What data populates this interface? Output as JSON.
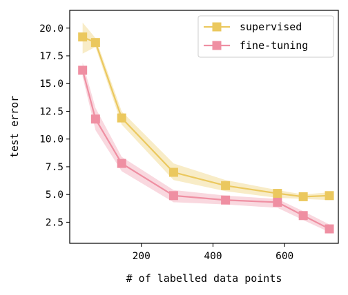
{
  "chart_data": {
    "type": "line",
    "title": "",
    "xlabel": "# of labelled data points",
    "ylabel": "test error",
    "xlim": [
      0,
      750
    ],
    "ylim": [
      0.6,
      21.6
    ],
    "xticks": [
      200,
      400,
      600
    ],
    "yticks": [
      2.5,
      5.0,
      7.5,
      10.0,
      12.5,
      15.0,
      17.5,
      20.0
    ],
    "grid": false,
    "legend_position": "top-right",
    "series": [
      {
        "name": "supervised",
        "color": "#EBC85E",
        "marker": "square",
        "x": [
          36,
          72,
          145,
          290,
          435,
          580,
          652,
          725
        ],
        "y": [
          19.2,
          18.7,
          11.9,
          7.0,
          5.8,
          5.1,
          4.8,
          4.9
        ],
        "lower": [
          17.7,
          18.3,
          11.3,
          6.3,
          5.3,
          4.7,
          4.6,
          4.5
        ],
        "upper": [
          20.5,
          19.1,
          12.5,
          7.8,
          6.3,
          5.4,
          5.0,
          5.2
        ]
      },
      {
        "name": "fine-tuning",
        "color": "#EF8FA2",
        "marker": "square",
        "x": [
          36,
          72,
          145,
          290,
          435,
          580,
          652,
          725
        ],
        "y": [
          16.2,
          11.8,
          7.8,
          4.9,
          4.5,
          4.3,
          3.1,
          1.9
        ],
        "lower": [
          15.6,
          10.8,
          7.1,
          4.3,
          4.1,
          3.8,
          2.7,
          1.6
        ],
        "upper": [
          16.9,
          12.8,
          8.4,
          5.4,
          4.9,
          4.6,
          3.5,
          2.3
        ]
      }
    ]
  }
}
